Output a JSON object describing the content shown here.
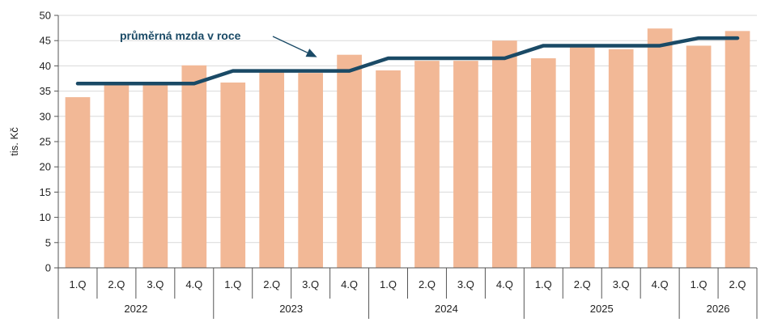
{
  "chart_data": {
    "type": "bar",
    "ylabel": "tis. Kč",
    "ylim": [
      0,
      50
    ],
    "yticks": [
      0,
      5,
      10,
      15,
      20,
      25,
      30,
      35,
      40,
      45,
      50
    ],
    "grid": true,
    "categories": [
      "1.Q",
      "2.Q",
      "3.Q",
      "4.Q",
      "1.Q",
      "2.Q",
      "3.Q",
      "4.Q",
      "1.Q",
      "2.Q",
      "3.Q",
      "4.Q",
      "1.Q",
      "2.Q",
      "3.Q",
      "4.Q",
      "1.Q",
      "2.Q"
    ],
    "groups": [
      {
        "label": "2022",
        "count": 4
      },
      {
        "label": "2023",
        "count": 4
      },
      {
        "label": "2024",
        "count": 4
      },
      {
        "label": "2025",
        "count": 4
      },
      {
        "label": "2026",
        "count": 2
      }
    ],
    "series": [
      {
        "type": "bar",
        "color": "#f2b896",
        "values": [
          33.8,
          36.2,
          36.3,
          40.1,
          36.7,
          39.0,
          38.6,
          42.2,
          39.1,
          41.0,
          41.0,
          45.0,
          41.5,
          43.9,
          43.3,
          47.4,
          44.0,
          46.9
        ]
      },
      {
        "type": "line",
        "name": "průměrná mzda v roce",
        "color": "#1a4a66",
        "values": [
          36.5,
          36.5,
          36.5,
          36.5,
          39.0,
          39.0,
          39.0,
          39.0,
          41.5,
          41.5,
          41.5,
          41.5,
          44.0,
          44.0,
          44.0,
          44.0,
          45.5,
          45.5
        ]
      }
    ],
    "annotation": {
      "text": "průměrná mzda v roce",
      "arrow_to_index": 6
    }
  }
}
